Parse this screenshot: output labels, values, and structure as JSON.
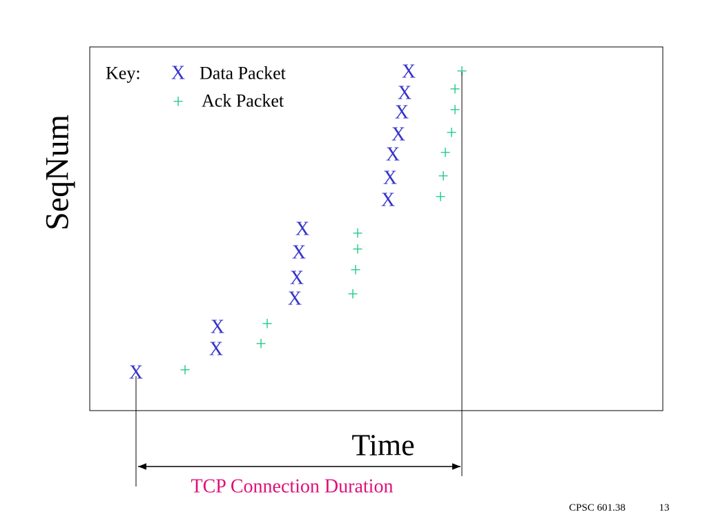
{
  "axis": {
    "y_label": "SeqNum",
    "x_label": "Time"
  },
  "key": {
    "title": "Key:",
    "data_symbol": "X",
    "data_label": "Data Packet",
    "ack_symbol": "+",
    "ack_label": "Ack Packet"
  },
  "duration_label": "TCP Connection Duration",
  "footer": {
    "course": "CPSC 601.38",
    "page": 13
  }
}
